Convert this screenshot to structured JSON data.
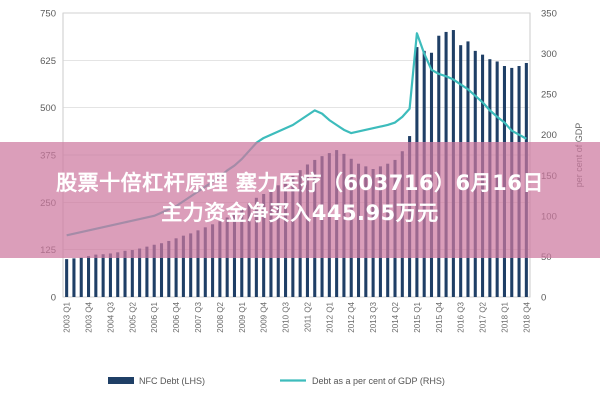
{
  "banner": {
    "line1": "股票十倍杠杆原理 塞力医疗（603716）6月16日",
    "line2": "主力资金净买入445.95万元"
  },
  "chart_data": {
    "type": "bar+line",
    "categories": [
      "2003 Q1",
      "2003 Q2",
      "2003 Q3",
      "2003 Q4",
      "2004 Q1",
      "2004 Q2",
      "2004 Q3",
      "2004 Q4",
      "2005 Q1",
      "2005 Q2",
      "2005 Q3",
      "2005 Q4",
      "2006 Q1",
      "2006 Q2",
      "2006 Q3",
      "2006 Q4",
      "2007 Q1",
      "2007 Q2",
      "2007 Q3",
      "2007 Q4",
      "2008 Q1",
      "2008 Q2",
      "2008 Q3",
      "2008 Q4",
      "2009 Q1",
      "2009 Q2",
      "2009 Q3",
      "2009 Q4",
      "2010 Q1",
      "2010 Q2",
      "2010 Q3",
      "2010 Q4",
      "2011 Q1",
      "2011 Q2",
      "2011 Q3",
      "2011 Q4",
      "2012 Q1",
      "2012 Q2",
      "2012 Q3",
      "2012 Q4",
      "2013 Q1",
      "2013 Q2",
      "2013 Q3",
      "2013 Q4",
      "2014 Q1",
      "2014 Q2",
      "2014 Q3",
      "2014 Q4",
      "2015 Q1",
      "2015 Q2",
      "2015 Q3",
      "2015 Q4",
      "2016 Q1",
      "2016 Q2",
      "2016 Q3",
      "2016 Q4",
      "2017 Q1",
      "2017 Q2",
      "2017 Q3",
      "2017 Q4",
      "2018 Q1",
      "2018 Q2",
      "2018 Q3",
      "2018 Q4"
    ],
    "x_tick_labels": [
      "2003 Q1",
      "2003 Q4",
      "2004 Q3",
      "2005 Q2",
      "2006 Q1",
      "2006 Q4",
      "2007 Q3",
      "2008 Q2",
      "2009 Q1",
      "2009 Q4",
      "2010 Q3",
      "2011 Q2",
      "2012 Q1",
      "2012 Q4",
      "2013 Q3",
      "2014 Q2",
      "2015 Q1",
      "2015 Q4",
      "2016 Q3",
      "2017 Q2",
      "2018 Q1",
      "2018 Q4"
    ],
    "series": [
      {
        "name": "NFC Debt (LHS)",
        "type": "bar",
        "axis": "left",
        "color": "#1f3f66",
        "values": [
          100,
          102,
          104,
          108,
          112,
          113,
          115,
          118,
          122,
          124,
          128,
          133,
          138,
          142,
          148,
          155,
          162,
          168,
          176,
          184,
          192,
          200,
          210,
          222,
          235,
          248,
          262,
          272,
          280,
          295,
          305,
          320,
          335,
          350,
          362,
          372,
          380,
          388,
          378,
          365,
          352,
          345,
          338,
          345,
          352,
          362,
          385,
          425,
          660,
          650,
          645,
          690,
          700,
          705,
          665,
          675,
          650,
          640,
          628,
          622,
          610,
          605,
          610,
          618
        ]
      },
      {
        "name": "Debt as a per cent of GDP (RHS)",
        "type": "line",
        "axis": "right",
        "color": "#3dbcbc",
        "values": [
          76,
          78,
          80,
          82,
          84,
          86,
          88,
          90,
          92,
          94,
          96,
          98,
          100,
          104,
          108,
          112,
          118,
          124,
          130,
          136,
          142,
          148,
          156,
          162,
          170,
          180,
          190,
          196,
          200,
          204,
          208,
          212,
          218,
          224,
          230,
          226,
          218,
          212,
          206,
          202,
          204,
          206,
          208,
          210,
          212,
          215,
          222,
          232,
          325,
          300,
          280,
          275,
          272,
          268,
          262,
          256,
          248,
          240,
          230,
          222,
          215,
          205,
          200,
          195
        ]
      }
    ],
    "yleft": {
      "ticks": [
        0,
        125,
        250,
        375,
        500,
        625,
        750
      ],
      "ylim": [
        0,
        750
      ],
      "label": ""
    },
    "yright": {
      "ticks": [
        0,
        50,
        100,
        150,
        200,
        250,
        300,
        350
      ],
      "ylim": [
        0,
        350
      ],
      "label": "per cent of GDP"
    },
    "legend": {
      "position": "bottom",
      "entries": [
        "NFC Debt (LHS)",
        "Debt as a per cent of GDP (RHS)"
      ]
    },
    "grid": "horizontal"
  }
}
